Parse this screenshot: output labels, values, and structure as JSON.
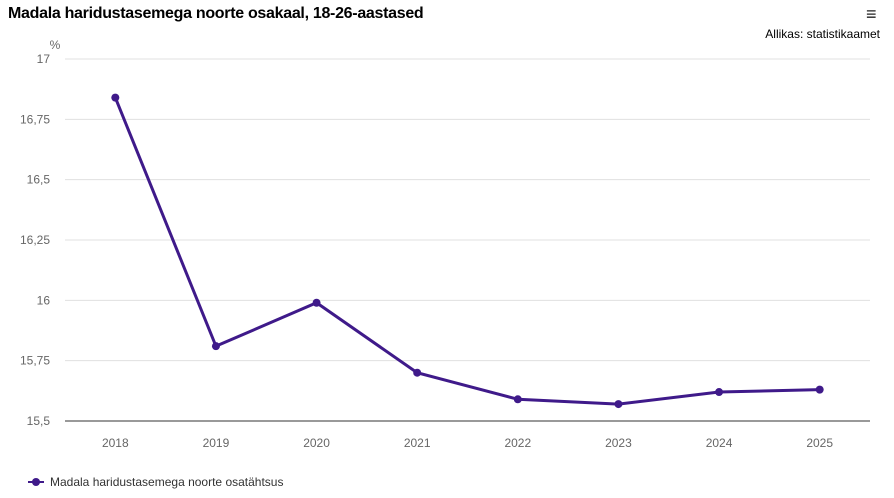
{
  "header": {
    "title": "Madala haridustasemega noorte osakaal, 18-26-aastased",
    "source": "Allikas: statistikaamet",
    "menu_icon": "hamburger-menu-icon"
  },
  "chart_data": {
    "type": "line",
    "title": "Madala haridustasemega noorte osakaal, 18-26-aastased",
    "ylabel": "%",
    "xlabel": "",
    "ylim": [
      15.5,
      17
    ],
    "yticks": [
      15.5,
      15.75,
      16,
      16.25,
      16.5,
      16.75,
      17
    ],
    "ytick_labels": [
      "15,5",
      "15,75",
      "16",
      "16,25",
      "16,5",
      "16,75",
      "17"
    ],
    "categories": [
      "2018",
      "2019",
      "2020",
      "2021",
      "2022",
      "2023",
      "2024",
      "2025"
    ],
    "series": [
      {
        "name": "Madala haridustasemega noorte osatähtsus",
        "color": "#3f1a8a",
        "values": [
          16.84,
          15.81,
          15.99,
          15.7,
          15.59,
          15.57,
          15.62,
          15.63
        ]
      }
    ],
    "grid": true,
    "legend_position": "bottom-left"
  }
}
